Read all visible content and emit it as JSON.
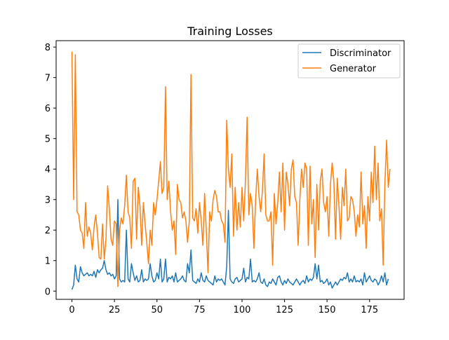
{
  "chart_data": {
    "type": "line",
    "title": "Training Losses",
    "xlabel": "",
    "ylabel": "",
    "xlim": [
      -9.3,
      195.3
    ],
    "ylim": [
      -0.27,
      8.21
    ],
    "xticks": [
      0,
      25,
      50,
      75,
      100,
      125,
      150,
      175
    ],
    "yticks": [
      0,
      1,
      2,
      3,
      4,
      5,
      6,
      7,
      8
    ],
    "grid": false,
    "legend": "top-right",
    "series": [
      {
        "name": "Discriminator",
        "color": "#1f77b4",
        "values": [
          0.05,
          0.2,
          0.85,
          0.4,
          0.3,
          0.8,
          0.6,
          0.5,
          0.55,
          0.6,
          0.5,
          0.55,
          0.5,
          0.65,
          0.45,
          0.7,
          0.6,
          0.7,
          0.75,
          1.0,
          0.7,
          0.55,
          0.6,
          0.5,
          0.55,
          0.4,
          0.5,
          3.0,
          0.4,
          0.3,
          0.35,
          0.3,
          2.0,
          0.4,
          0.3,
          0.9,
          0.6,
          0.35,
          0.5,
          0.3,
          0.35,
          0.7,
          0.3,
          0.4,
          0.35,
          0.4,
          0.9,
          0.5,
          0.3,
          0.35,
          0.6,
          0.4,
          1.05,
          0.3,
          0.4,
          1.05,
          0.3,
          0.45,
          0.4,
          0.5,
          0.3,
          0.6,
          0.3,
          0.35,
          0.4,
          0.5,
          0.35,
          0.3,
          0.9,
          0.6,
          1.35,
          0.35,
          0.3,
          0.25,
          0.4,
          0.3,
          0.6,
          0.35,
          0.3,
          0.5,
          0.35,
          0.3,
          0.25,
          0.2,
          0.5,
          0.3,
          0.4,
          0.35,
          0.4,
          0.3,
          0.2,
          0.8,
          2.65,
          0.4,
          0.3,
          0.25,
          0.4,
          0.45,
          0.3,
          0.35,
          0.4,
          0.75,
          0.3,
          0.45,
          0.4,
          1.05,
          0.3,
          0.35,
          0.3,
          0.4,
          0.6,
          0.3,
          0.25,
          0.4,
          0.2,
          0.15,
          0.3,
          0.25,
          0.4,
          0.3,
          0.2,
          0.45,
          0.5,
          0.3,
          0.2,
          0.35,
          0.25,
          0.4,
          0.3,
          0.25,
          0.2,
          0.3,
          0.4,
          0.3,
          0.2,
          0.3,
          0.35,
          0.25,
          0.5,
          0.3,
          0.4,
          0.35,
          0.45,
          0.9,
          0.4,
          0.85,
          0.3,
          0.35,
          0.25,
          0.3,
          0.4,
          0.2,
          0.3,
          0.1,
          0.2,
          0.3,
          0.2,
          0.3,
          0.4,
          0.35,
          0.45,
          0.4,
          0.6,
          0.3,
          0.4,
          0.3,
          0.5,
          0.3,
          0.35,
          0.3,
          0.4,
          0.2,
          0.6,
          0.3,
          0.4,
          0.5,
          0.35,
          0.3,
          0.4,
          0.35,
          0.2,
          0.3,
          0.5,
          0.3,
          0.6,
          0.2,
          0.4
        ]
      },
      {
        "name": "Generator",
        "color": "#ff7f0e",
        "values": [
          7.85,
          3.0,
          7.75,
          2.6,
          2.5,
          2.0,
          1.9,
          1.4,
          2.9,
          1.8,
          2.1,
          1.9,
          1.35,
          2.1,
          2.5,
          1.9,
          1.1,
          1.05,
          2.2,
          1.05,
          1.7,
          3.45,
          2.7,
          1.7,
          1.5,
          2.3,
          2.2,
          0.15,
          2.0,
          2.4,
          2.2,
          2.8,
          3.8,
          2.6,
          2.4,
          1.4,
          3.6,
          3.7,
          1.7,
          3.4,
          2.8,
          1.5,
          2.9,
          2.2,
          1.6,
          0.9,
          2.0,
          1.5,
          2.9,
          2.5,
          3.0,
          3.6,
          4.25,
          3.2,
          3.4,
          6.7,
          3.0,
          3.6,
          2.6,
          2.0,
          2.3,
          1.2,
          3.5,
          3.0,
          2.9,
          2.4,
          2.6,
          2.3,
          1.6,
          2.3,
          7.1,
          2.4,
          2.3,
          2.7,
          1.9,
          2.9,
          2.3,
          1.5,
          3.2,
          2.0,
          0.6,
          2.6,
          2.3,
          3.0,
          3.3,
          3.1,
          2.6,
          2.6,
          2.3,
          2.2,
          1.6,
          5.6,
          4.0,
          3.4,
          4.5,
          1.8,
          3.4,
          2.0,
          2.9,
          2.1,
          3.4,
          2.3,
          3.6,
          5.7,
          2.5,
          3.2,
          2.8,
          1.4,
          3.0,
          4.0,
          3.1,
          2.6,
          3.3,
          4.5,
          2.5,
          2.3,
          2.3,
          2.6,
          0.85,
          3.2,
          2.2,
          2.9,
          3.9,
          2.6,
          4.2,
          2.0,
          3.9,
          3.5,
          2.8,
          4.0,
          4.3,
          3.1,
          2.9,
          1.5,
          3.0,
          4.0,
          3.4,
          4.2,
          4.0,
          1.5,
          4.1,
          2.2,
          3.0,
          1.1,
          3.5,
          2.0,
          3.6,
          4.0,
          2.9,
          2.6,
          3.1,
          1.8,
          3.5,
          4.2,
          3.6,
          1.7,
          3.7,
          2.8,
          1.7,
          3.4,
          2.8,
          4.0,
          2.3,
          2.4,
          3.1,
          3.0,
          2.6,
          1.8,
          2.5,
          2.1,
          3.9,
          2.2,
          2.8,
          1.4,
          3.1,
          2.3,
          3.9,
          2.9,
          4.75,
          3.0,
          4.2,
          2.3,
          2.7,
          0.85,
          3.5,
          4.95,
          3.4,
          4.0
        ]
      }
    ]
  }
}
